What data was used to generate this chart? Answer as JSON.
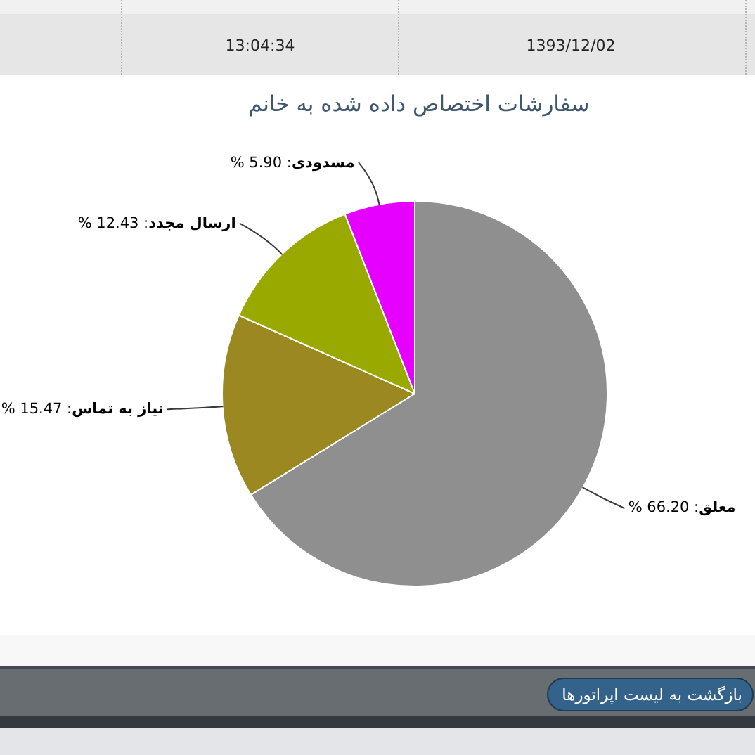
{
  "chart_data": {
    "type": "pie",
    "title": "سفارشات اختصاص داده شده به خانم",
    "categories": [
      "معلق",
      "نیاز به تماس",
      "ارسال مجدد",
      "مسدودی"
    ],
    "values": [
      66.2,
      15.47,
      12.43,
      5.9
    ],
    "colors": [
      "#8f8f8f",
      "#9b8820",
      "#9aa900",
      "#e600ff"
    ],
    "value_labels": [
      ": 66.20 %",
      ": 15.47 %",
      ": 12.43 %",
      ": 5.90 %"
    ],
    "annotations": [
      "13:04:34",
      "1393/12/02",
      "بازگشت به لیست اپراتورها"
    ]
  }
}
